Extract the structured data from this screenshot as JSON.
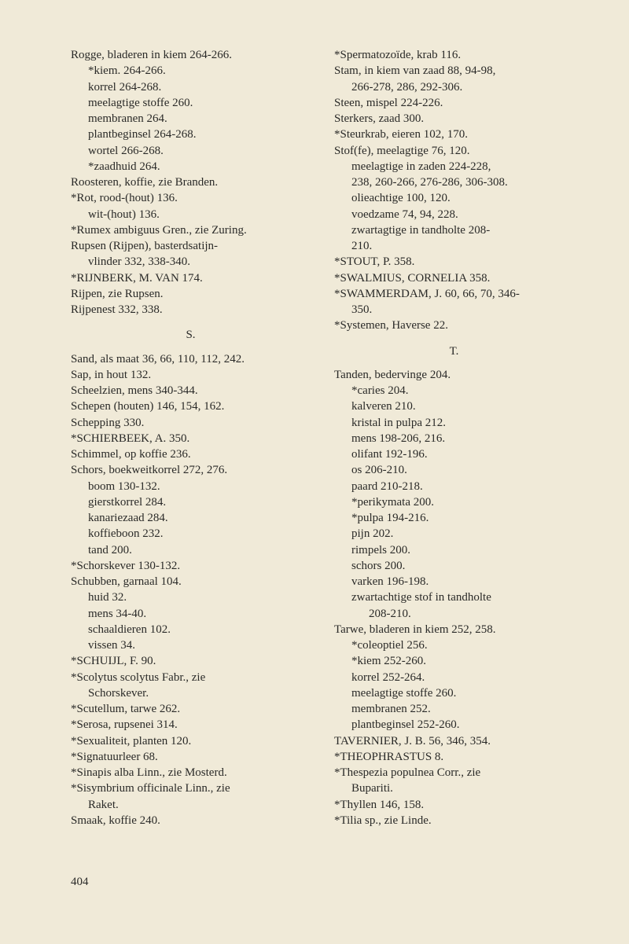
{
  "left": [
    {
      "t": "Rogge, bladeren in kiem 264-266.",
      "i": 0
    },
    {
      "t": "*kiem. 264-266.",
      "i": 1
    },
    {
      "t": "korrel 264-268.",
      "i": 1
    },
    {
      "t": "meelagtige stoffe 260.",
      "i": 1
    },
    {
      "t": "membranen 264.",
      "i": 1
    },
    {
      "t": "plantbeginsel 264-268.",
      "i": 1
    },
    {
      "t": "wortel 266-268.",
      "i": 1
    },
    {
      "t": "*zaadhuid 264.",
      "i": 1
    },
    {
      "t": "Roosteren, koffie, zie Branden.",
      "i": 0
    },
    {
      "t": "*Rot, rood-(hout) 136.",
      "i": 0
    },
    {
      "t": "wit-(hout) 136.",
      "i": 1
    },
    {
      "t": "*Rumex ambiguus Gren., zie Zuring.",
      "i": 0
    },
    {
      "t": "Rupsen (Rijpen), basterdsatijn-",
      "i": 0
    },
    {
      "t": "vlinder 332, 338-340.",
      "i": 1
    },
    {
      "t": "*RIJNBERK, M. VAN 174.",
      "i": 0
    },
    {
      "t": "Rijpen, zie Rupsen.",
      "i": 0
    },
    {
      "t": "Rijpenest 332, 338.",
      "i": 0
    },
    {
      "t": "S.",
      "sect": true
    },
    {
      "t": "Sand, als maat 36, 66, 110, 112, 242.",
      "i": 0
    },
    {
      "t": "Sap, in hout 132.",
      "i": 0
    },
    {
      "t": "Scheelzien, mens 340-344.",
      "i": 0
    },
    {
      "t": "Schepen (houten) 146, 154, 162.",
      "i": 0
    },
    {
      "t": "Schepping 330.",
      "i": 0
    },
    {
      "t": "*SCHIERBEEK, A. 350.",
      "i": 0
    },
    {
      "t": "Schimmel, op koffie 236.",
      "i": 0
    },
    {
      "t": "Schors, boekweitkorrel 272, 276.",
      "i": 0
    },
    {
      "t": "boom 130-132.",
      "i": 1
    },
    {
      "t": "gierstkorrel 284.",
      "i": 1
    },
    {
      "t": "kanariezaad 284.",
      "i": 1
    },
    {
      "t": "koffieboon 232.",
      "i": 1
    },
    {
      "t": "tand 200.",
      "i": 1
    },
    {
      "t": "*Schorskever 130-132.",
      "i": 0
    },
    {
      "t": "Schubben, garnaal 104.",
      "i": 0
    },
    {
      "t": "huid 32.",
      "i": 1
    },
    {
      "t": "mens 34-40.",
      "i": 1
    },
    {
      "t": "schaaldieren 102.",
      "i": 1
    },
    {
      "t": "vissen 34.",
      "i": 1
    },
    {
      "t": "*SCHUIJL, F. 90.",
      "i": 0
    },
    {
      "t": "*Scolytus scolytus Fabr., zie",
      "i": 0
    },
    {
      "t": "Schorskever.",
      "i": 1
    },
    {
      "t": "*Scutellum, tarwe 262.",
      "i": 0
    },
    {
      "t": "*Serosa, rupsenei 314.",
      "i": 0
    },
    {
      "t": "*Sexualiteit, planten 120.",
      "i": 0
    },
    {
      "t": "*Signatuurleer 68.",
      "i": 0
    },
    {
      "t": "*Sinapis alba Linn., zie Mosterd.",
      "i": 0
    },
    {
      "t": "*Sisymbrium officinale Linn., zie",
      "i": 0
    },
    {
      "t": "Raket.",
      "i": 1
    },
    {
      "t": "Smaak, koffie 240.",
      "i": 0
    }
  ],
  "right": [
    {
      "t": "*Spermatozoïde, krab 116.",
      "i": 0
    },
    {
      "t": "Stam, in kiem van zaad 88, 94-98,",
      "i": 0
    },
    {
      "t": "266-278, 286, 292-306.",
      "i": 1
    },
    {
      "t": "Steen, mispel 224-226.",
      "i": 0
    },
    {
      "t": "Sterkers, zaad 300.",
      "i": 0
    },
    {
      "t": "*Steurkrab, eieren 102, 170.",
      "i": 0
    },
    {
      "t": "Stof(fe), meelagtige 76, 120.",
      "i": 0
    },
    {
      "t": "meelagtige in zaden 224-228,",
      "i": 1
    },
    {
      "t": "238, 260-266, 276-286, 306-308.",
      "i": 1
    },
    {
      "t": "olieachtige 100, 120.",
      "i": 1
    },
    {
      "t": "voedzame 74, 94, 228.",
      "i": 1
    },
    {
      "t": "zwartagtige in tandholte 208-",
      "i": 1
    },
    {
      "t": "210.",
      "i": 1
    },
    {
      "t": "*STOUT, P. 358.",
      "i": 0
    },
    {
      "t": "*SWALMIUS, CORNELIA 358.",
      "i": 0
    },
    {
      "t": "*SWAMMERDAM, J. 60, 66, 70, 346-",
      "i": 0
    },
    {
      "t": "350.",
      "i": 1
    },
    {
      "t": "*Systemen, Haverse 22.",
      "i": 0
    },
    {
      "t": "T.",
      "sect": true
    },
    {
      "t": "Tanden, bedervinge 204.",
      "i": 0
    },
    {
      "t": "*caries 204.",
      "i": 1
    },
    {
      "t": "kalveren 210.",
      "i": 1
    },
    {
      "t": "kristal in pulpa 212.",
      "i": 1
    },
    {
      "t": "mens 198-206, 216.",
      "i": 1
    },
    {
      "t": "olifant 192-196.",
      "i": 1
    },
    {
      "t": "os 206-210.",
      "i": 1
    },
    {
      "t": "paard 210-218.",
      "i": 1
    },
    {
      "t": "*perikymata 200.",
      "i": 1
    },
    {
      "t": "*pulpa 194-216.",
      "i": 1
    },
    {
      "t": "pijn 202.",
      "i": 1
    },
    {
      "t": "rimpels 200.",
      "i": 1
    },
    {
      "t": "schors 200.",
      "i": 1
    },
    {
      "t": "varken 196-198.",
      "i": 1
    },
    {
      "t": "zwartachtige stof in tandholte",
      "i": 1
    },
    {
      "t": "208-210.",
      "i": 2
    },
    {
      "t": "Tarwe, bladeren in kiem 252, 258.",
      "i": 0
    },
    {
      "t": "*coleoptiel 256.",
      "i": 1
    },
    {
      "t": "*kiem 252-260.",
      "i": 1
    },
    {
      "t": "korrel 252-264.",
      "i": 1
    },
    {
      "t": "meelagtige stoffe 260.",
      "i": 1
    },
    {
      "t": "membranen 252.",
      "i": 1
    },
    {
      "t": "plantbeginsel 252-260.",
      "i": 1
    },
    {
      "t": "TAVERNIER, J. B. 56, 346, 354.",
      "i": 0
    },
    {
      "t": "*THEOPHRASTUS 8.",
      "i": 0
    },
    {
      "t": "*Thespezia populnea Corr., zie",
      "i": 0
    },
    {
      "t": "Bupariti.",
      "i": 1
    },
    {
      "t": "*Thyllen 146, 158.",
      "i": 0
    },
    {
      "t": "*Tilia sp., zie Linde.",
      "i": 0
    }
  ],
  "pageno": "404"
}
